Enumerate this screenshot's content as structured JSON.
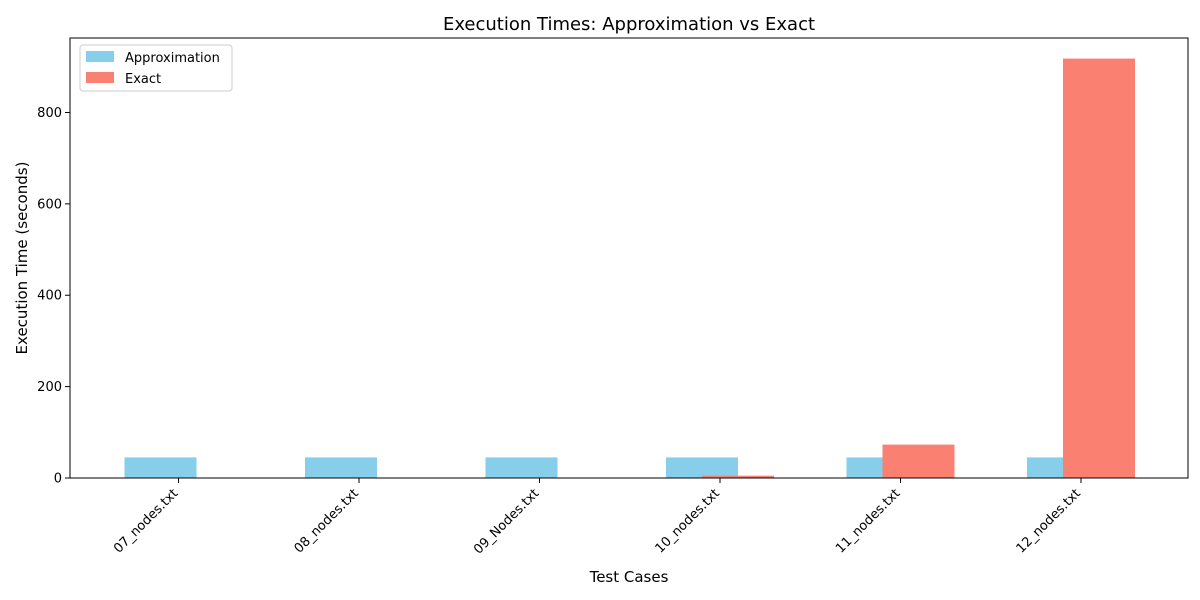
{
  "chart_data": {
    "type": "bar",
    "title": "Execution Times: Approximation vs Exact",
    "xlabel": "Test Cases",
    "ylabel": "Execution Time (seconds)",
    "categories": [
      "07_nodes.txt",
      "08_nodes.txt",
      "09_Nodes.txt",
      "10_nodes.txt",
      "11_nodes.txt",
      "12_nodes.txt"
    ],
    "series": [
      {
        "name": "Approximation",
        "color": "#87ceeb",
        "values": [
          45,
          45,
          45,
          45,
          45,
          45
        ]
      },
      {
        "name": "Exact",
        "color": "#fa8072",
        "values": [
          0,
          0,
          0,
          5,
          73,
          918
        ]
      }
    ],
    "ylim": [
      0,
      963
    ],
    "yticks": [
      0,
      200,
      400,
      600,
      800
    ],
    "grid": false,
    "legend_position": "top-left"
  }
}
